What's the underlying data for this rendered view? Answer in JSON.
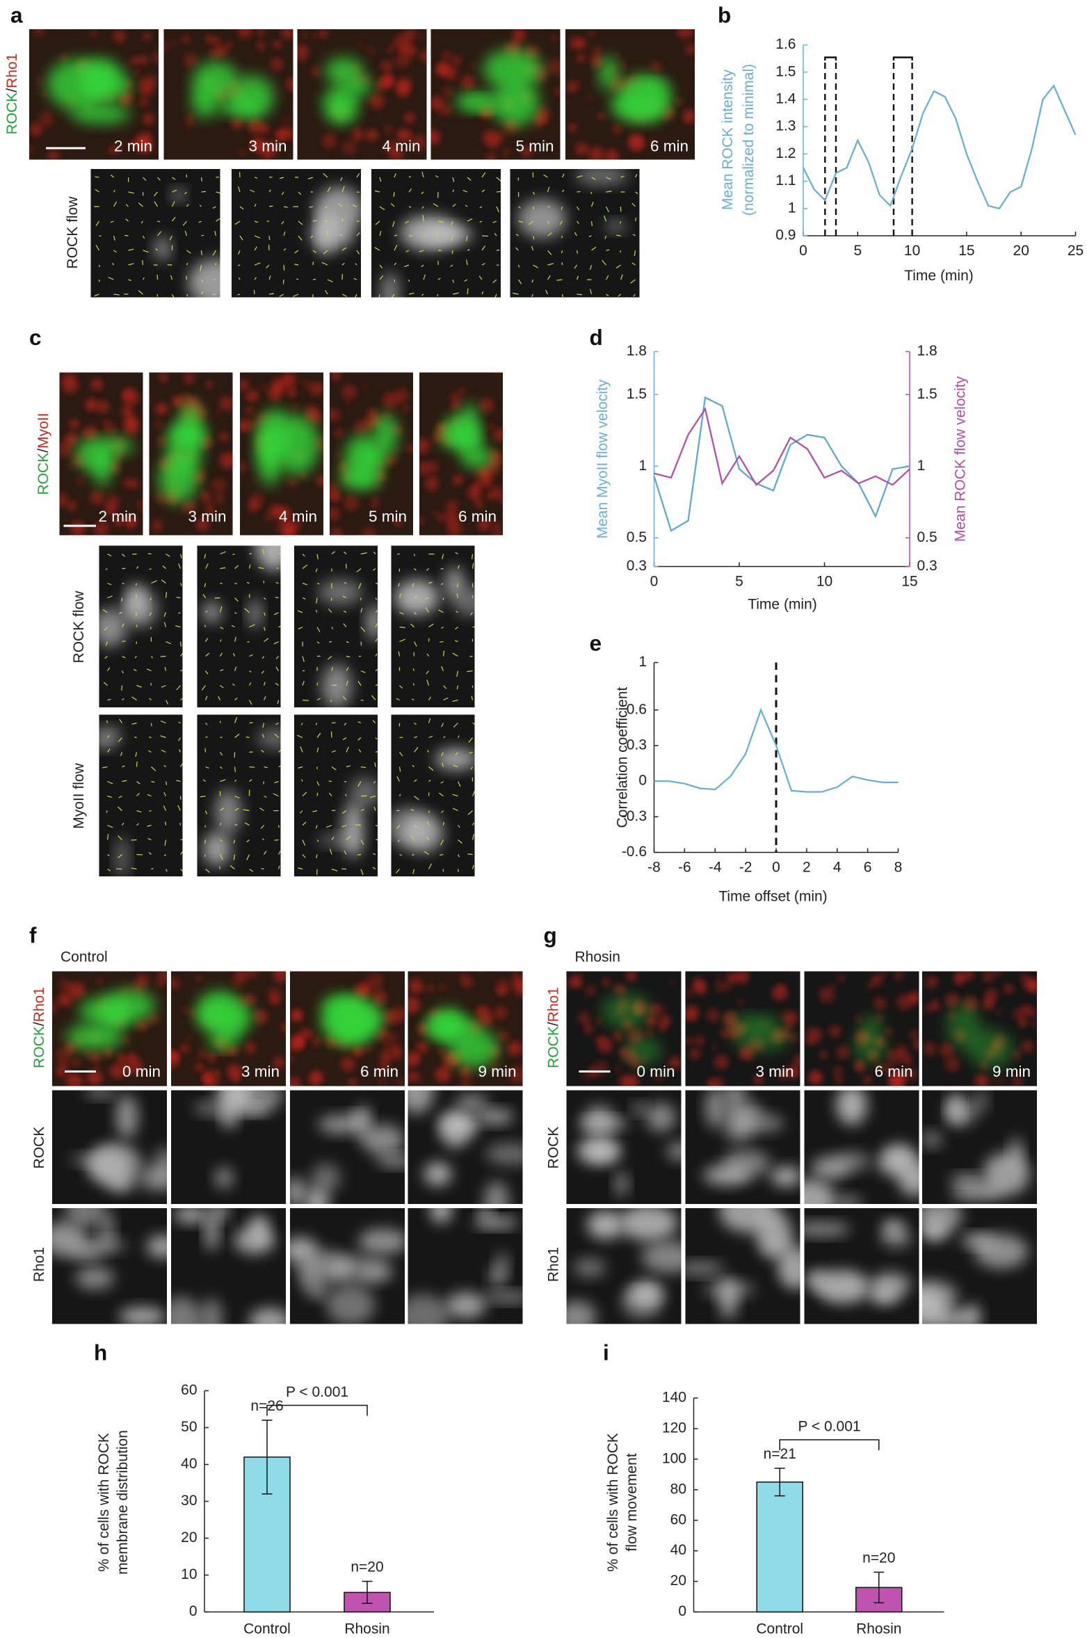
{
  "figure": {
    "a": {
      "letter": "a",
      "channel": [
        "ROCK",
        "/",
        "Rho1"
      ],
      "times": [
        "2 min",
        "3 min",
        "4 min",
        "5 min",
        "6 min"
      ],
      "flow_label": "ROCK flow"
    },
    "c": {
      "letter": "c",
      "channel": [
        "ROCK",
        "/",
        "MyoII"
      ],
      "times": [
        "2 min",
        "3 min",
        "4 min",
        "5 min",
        "6 min"
      ],
      "flow_labels": [
        "ROCK flow",
        "MyoII flow"
      ]
    },
    "f": {
      "letter": "f",
      "condition": "Control",
      "channel": [
        "ROCK",
        "/",
        "Rho1"
      ],
      "times": [
        "0 min",
        "3 min",
        "6 min",
        "9 min"
      ],
      "row_labels": [
        "ROCK",
        "Rho1"
      ]
    },
    "g": {
      "letter": "g",
      "condition": "Rhosin",
      "channel": [
        "ROCK",
        "/",
        "Rho1"
      ],
      "times": [
        "0 min",
        "3 min",
        "6 min",
        "9 min"
      ],
      "row_labels": [
        "ROCK",
        "Rho1"
      ]
    }
  },
  "chart_data": [
    {
      "panel": "b",
      "type": "line",
      "color": "#6aaed0",
      "x": [
        0,
        1,
        2,
        3,
        4,
        5,
        6,
        7,
        8,
        9,
        10,
        11,
        12,
        13,
        14,
        15,
        16,
        17,
        18,
        19,
        20,
        21,
        22,
        23,
        24,
        25
      ],
      "values": [
        1.15,
        1.07,
        1.03,
        1.13,
        1.15,
        1.25,
        1.17,
        1.05,
        1.01,
        1.12,
        1.22,
        1.35,
        1.43,
        1.41,
        1.33,
        1.2,
        1.1,
        1.01,
        1.0,
        1.06,
        1.08,
        1.22,
        1.4,
        1.45,
        1.36,
        1.27
      ],
      "xlabel": "Time (min)",
      "ylabel": [
        "Mean ROCK intensity",
        "(normalized to minimal)"
      ],
      "xlim": [
        0,
        25
      ],
      "ylim": [
        0.9,
        1.6
      ],
      "xticks": [
        0,
        5,
        10,
        15,
        20,
        25
      ],
      "yticks": [
        0.9,
        1,
        1.1,
        1.2,
        1.3,
        1.4,
        1.5,
        1.6
      ],
      "highlight_intervals": [
        [
          2,
          3
        ],
        [
          8.3,
          10
        ]
      ]
    },
    {
      "panel": "d",
      "type": "line",
      "x": [
        0,
        1,
        2,
        3,
        4,
        5,
        6,
        7,
        8,
        9,
        10,
        11,
        12,
        13,
        14,
        15
      ],
      "series": [
        {
          "color": "#5ea8c9",
          "values": [
            0.93,
            0.55,
            0.62,
            1.48,
            1.42,
            0.98,
            0.88,
            0.83,
            1.15,
            1.22,
            1.2,
            1.0,
            0.88,
            0.65,
            0.98,
            1.0
          ]
        },
        {
          "color": "#b04fa6",
          "axis": "y2",
          "values": [
            0.95,
            0.92,
            1.22,
            1.4,
            0.88,
            1.07,
            0.87,
            0.97,
            1.2,
            1.12,
            0.92,
            0.97,
            0.88,
            0.93,
            0.87,
            0.98
          ]
        }
      ],
      "xlabel": "Time (min)",
      "ylabel": "Mean MyoII flow velocity",
      "y2label": "Mean ROCK flow velocity",
      "xlim": [
        0,
        15
      ],
      "ylim": [
        0.3,
        1.8
      ],
      "y2lim": [
        0.3,
        1.8
      ],
      "xticks": [
        0,
        5,
        10,
        15
      ],
      "yticks": [
        0.3,
        0.5,
        1,
        1.5,
        1.8
      ],
      "y2ticks": [
        0.3,
        0.5,
        1,
        1.5,
        1.8
      ]
    },
    {
      "panel": "e",
      "type": "line",
      "color": "#6aaed0",
      "x": [
        -8,
        -7,
        -6,
        -5,
        -4,
        -3,
        -2,
        -1,
        0,
        1,
        2,
        3,
        4,
        5,
        6,
        7,
        8
      ],
      "values": [
        0,
        0,
        -0.02,
        -0.06,
        -0.07,
        0.04,
        0.23,
        0.6,
        0.3,
        -0.08,
        -0.09,
        -0.09,
        -0.05,
        0.04,
        0.01,
        -0.01,
        -0.01
      ],
      "xlabel": "Time offset (min)",
      "ylabel": "Correlation coefficient",
      "xlim": [
        -8,
        8
      ],
      "ylim": [
        -0.6,
        1
      ],
      "xticks": [
        -8,
        -6,
        -4,
        -2,
        0,
        2,
        4,
        6,
        8
      ],
      "yticks": [
        -0.6,
        -0.3,
        0,
        0.3,
        0.6,
        1
      ],
      "vline_x": 0
    },
    {
      "panel": "h",
      "type": "bar",
      "categories": [
        "Control",
        "Rhosin"
      ],
      "values": [
        42,
        5.3
      ],
      "errors": [
        10,
        3
      ],
      "colors": [
        "#8fdbe8",
        "#c052b0"
      ],
      "n_labels": [
        "n=26",
        "n=20"
      ],
      "p_label": "P < 0.001",
      "ylabel": [
        "% of cells with ROCK",
        "membrane distribution"
      ],
      "ylim": [
        0,
        60
      ],
      "yticks": [
        0,
        10,
        20,
        30,
        40,
        50,
        60
      ]
    },
    {
      "panel": "i",
      "type": "bar",
      "categories": [
        "Control",
        "Rhosin"
      ],
      "values": [
        85,
        16
      ],
      "errors": [
        9,
        10
      ],
      "colors": [
        "#8fdbe8",
        "#c052b0"
      ],
      "n_labels": [
        "n=21",
        "n=20"
      ],
      "p_label": "P < 0.001",
      "ylabel": [
        "% of cells with ROCK",
        "flow movement"
      ],
      "ylim": [
        0,
        140
      ],
      "yticks": [
        0,
        20,
        40,
        60,
        80,
        100,
        120,
        140
      ]
    }
  ]
}
